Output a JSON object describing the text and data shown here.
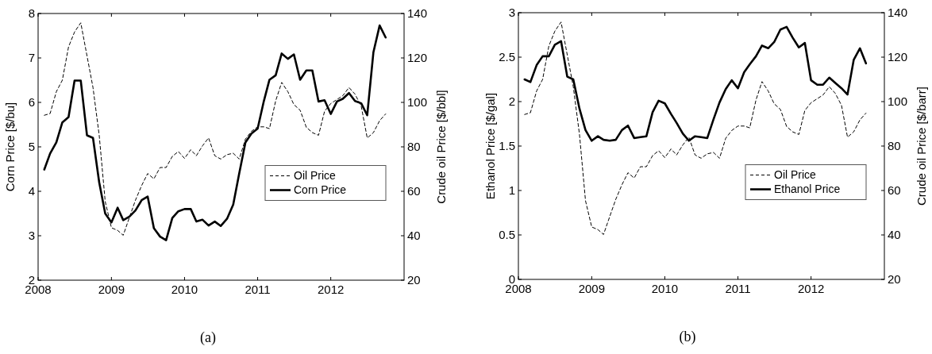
{
  "chart_data": [
    {
      "type": "line",
      "x": [
        "2008-02",
        "2008-03",
        "2008-04",
        "2008-05",
        "2008-06",
        "2008-07",
        "2008-08",
        "2008-09",
        "2008-10",
        "2008-11",
        "2008-12",
        "2009-01",
        "2009-02",
        "2009-03",
        "2009-04",
        "2009-05",
        "2009-06",
        "2009-07",
        "2009-08",
        "2009-09",
        "2009-10",
        "2009-11",
        "2009-12",
        "2010-01",
        "2010-02",
        "2010-03",
        "2010-04",
        "2010-05",
        "2010-06",
        "2010-07",
        "2010-08",
        "2010-09",
        "2010-10",
        "2010-11",
        "2010-12",
        "2011-01",
        "2011-02",
        "2011-03",
        "2011-04",
        "2011-05",
        "2011-06",
        "2011-07",
        "2011-08",
        "2011-09",
        "2011-10",
        "2011-11",
        "2011-12",
        "2012-01",
        "2012-02",
        "2012-03",
        "2012-04",
        "2012-05",
        "2012-06",
        "2012-07",
        "2012-08",
        "2012-09",
        "2012-10"
      ],
      "ylabel": "Corn Price [$/bu]",
      "y2label": "Crude oil Price [$/bbl]",
      "xlim": [
        "2008",
        "2013"
      ],
      "xticks": [
        "2008",
        "2009",
        "2010",
        "2011",
        "2012"
      ],
      "ylim": [
        2,
        8
      ],
      "yticks": [
        2,
        3,
        4,
        5,
        6,
        7,
        8
      ],
      "y2lim": [
        20,
        140
      ],
      "y2ticks": [
        20,
        40,
        60,
        80,
        100,
        120,
        140
      ],
      "legend": "right",
      "annotations": [
        "(a)"
      ],
      "series": [
        {
          "name": "Oil Price",
          "color": "#000000",
          "axis": "y2",
          "line_style": "dashed",
          "values": [
            94.2,
            95,
            104.8,
            110,
            125,
            131.7,
            135.8,
            121,
            106.7,
            85.2,
            55.4,
            43.6,
            42.4,
            40.2,
            48.3,
            56,
            62.6,
            68,
            65.6,
            70.7,
            70.7,
            75.7,
            77.9,
            74.8,
            78.7,
            76,
            80.5,
            84,
            76,
            74.5,
            76.5,
            77.1,
            74.5,
            83.5,
            87,
            89,
            89,
            88.2,
            100.7,
            109,
            104.8,
            99,
            96.5,
            88.8,
            86.4,
            85.2,
            96,
            99.5,
            101.3,
            103,
            106.7,
            103.7,
            98.3,
            84,
            86.4,
            91.8,
            94.8
          ]
        },
        {
          "name": "Corn Price",
          "color": "#000000",
          "line_style": "solid",
          "values": [
            4.49,
            4.85,
            5.1,
            5.55,
            5.67,
            6.49,
            6.49,
            5.26,
            5.2,
            4.2,
            3.5,
            3.3,
            3.63,
            3.35,
            3.43,
            3.57,
            3.8,
            3.88,
            3.17,
            2.98,
            2.9,
            3.4,
            3.55,
            3.6,
            3.6,
            3.32,
            3.36,
            3.23,
            3.32,
            3.22,
            3.38,
            3.7,
            4.4,
            5.1,
            5.3,
            5.41,
            6.03,
            6.51,
            6.61,
            7.1,
            6.98,
            7.08,
            6.51,
            6.72,
            6.72,
            6.02,
            6.05,
            5.74,
            6.02,
            6.08,
            6.21,
            6.03,
            5.98,
            5.71,
            7.13,
            7.73,
            7.46
          ]
        }
      ]
    },
    {
      "type": "line",
      "x": [
        "2008-02",
        "2008-03",
        "2008-04",
        "2008-05",
        "2008-06",
        "2008-07",
        "2008-08",
        "2008-09",
        "2008-10",
        "2008-11",
        "2008-12",
        "2009-01",
        "2009-02",
        "2009-03",
        "2009-04",
        "2009-05",
        "2009-06",
        "2009-07",
        "2009-08",
        "2009-09",
        "2009-10",
        "2009-11",
        "2009-12",
        "2010-01",
        "2010-02",
        "2010-03",
        "2010-04",
        "2010-05",
        "2010-06",
        "2010-07",
        "2010-08",
        "2010-09",
        "2010-10",
        "2010-11",
        "2010-12",
        "2011-01",
        "2011-02",
        "2011-03",
        "2011-04",
        "2011-05",
        "2011-06",
        "2011-07",
        "2011-08",
        "2011-09",
        "2011-10",
        "2011-11",
        "2011-12",
        "2012-01",
        "2012-02",
        "2012-03",
        "2012-04",
        "2012-05",
        "2012-06",
        "2012-07",
        "2012-08",
        "2012-09",
        "2012-10"
      ],
      "ylabel": "Ethanol Price [$/gal]",
      "y2label": "Crude oil Price [$/barr]",
      "xlim": [
        "2008",
        "2013"
      ],
      "xticks": [
        "2008",
        "2009",
        "2010",
        "2011",
        "2012"
      ],
      "ylim": [
        0,
        3
      ],
      "yticks": [
        0,
        0.5,
        1,
        1.5,
        2,
        2.5,
        3
      ],
      "y2lim": [
        20,
        140
      ],
      "y2ticks": [
        20,
        40,
        60,
        80,
        100,
        120,
        140
      ],
      "legend": "right",
      "annotations": [
        "(b)"
      ],
      "series": [
        {
          "name": "Oil Price",
          "color": "#000000",
          "axis": "y2",
          "line_style": "dashed",
          "values": [
            94.2,
            95,
            104.8,
            110,
            125,
            131.7,
            135.8,
            121,
            106.7,
            85.2,
            55.4,
            43.6,
            42.4,
            40.2,
            48.3,
            56,
            62.6,
            68,
            65.6,
            70.7,
            70.7,
            75.7,
            77.9,
            74.8,
            78.7,
            76,
            80.5,
            84,
            76,
            74.5,
            76.5,
            77.1,
            74.5,
            83.5,
            87,
            89,
            89,
            88.2,
            100.7,
            109,
            104.8,
            99,
            96.5,
            88.8,
            86.4,
            85.2,
            96,
            99.5,
            101.3,
            103,
            106.7,
            103.7,
            98.3,
            84,
            86.4,
            91.8,
            94.8
          ]
        },
        {
          "name": "Ethanol Price",
          "color": "#000000",
          "line_style": "solid",
          "values": [
            2.25,
            2.22,
            2.41,
            2.51,
            2.51,
            2.64,
            2.68,
            2.28,
            2.25,
            1.92,
            1.68,
            1.56,
            1.61,
            1.57,
            1.56,
            1.57,
            1.68,
            1.73,
            1.59,
            1.6,
            1.61,
            1.88,
            2.01,
            1.98,
            1.86,
            1.76,
            1.64,
            1.56,
            1.61,
            1.6,
            1.59,
            1.8,
            1.99,
            2.14,
            2.24,
            2.15,
            2.33,
            2.42,
            2.51,
            2.63,
            2.6,
            2.67,
            2.81,
            2.84,
            2.72,
            2.61,
            2.66,
            2.24,
            2.19,
            2.19,
            2.27,
            2.21,
            2.15,
            2.08,
            2.47,
            2.6,
            2.43
          ]
        }
      ]
    }
  ]
}
